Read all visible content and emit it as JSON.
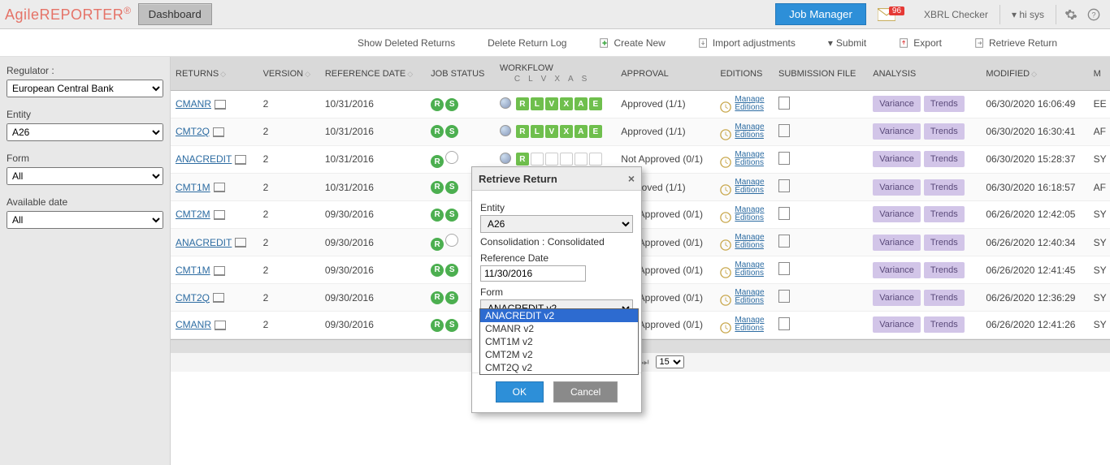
{
  "brand": {
    "a": "Agile",
    "b": "REPORTER",
    "r": "®"
  },
  "topbar": {
    "dashboard": "Dashboard",
    "job_manager": "Job Manager",
    "msg_count": "96",
    "xbrl": "XBRL Checker",
    "user": "hi sys"
  },
  "toolbar": {
    "show_deleted": "Show Deleted Returns",
    "delete_log": "Delete Return Log",
    "create_new": "Create New",
    "import_adj": "Import adjustments",
    "submit": "Submit",
    "export": "Export",
    "retrieve": "Retrieve Return"
  },
  "sidebar": {
    "regulator_lbl": "Regulator :",
    "regulator_val": "European Central Bank",
    "entity_lbl": "Entity",
    "entity_val": "A26",
    "form_lbl": "Form",
    "form_val": "All",
    "avail_lbl": "Available date",
    "avail_val": "All"
  },
  "headers": {
    "returns": "RETURNS",
    "version": "VERSION",
    "refdate": "REFERENCE DATE",
    "jobstatus": "JOB STATUS",
    "workflow": "WORKFLOW",
    "wf_letters": [
      "C",
      "L",
      "V",
      "X",
      "A",
      "S"
    ],
    "approval": "APPROVAL",
    "editions": "EDITIONS",
    "subfile": "SUBMISSION FILE",
    "analysis": "ANALYSIS",
    "modified": "MODIFIED",
    "m": "M"
  },
  "analysis_btn": {
    "variance": "Variance",
    "trends": "Trends"
  },
  "editions": {
    "manage": "Manage",
    "editions": "Editions"
  },
  "rows": [
    {
      "ret": "CMANR",
      "ver": "2",
      "ref": "10/31/2016",
      "js": [
        "R",
        "S"
      ],
      "wf": [
        "g",
        "g",
        "g",
        "g",
        "g",
        "g"
      ],
      "app": "Approved (1/1)",
      "mod": "06/30/2020 16:06:49",
      "m": "EE"
    },
    {
      "ret": "CMT2Q",
      "ver": "2",
      "ref": "10/31/2016",
      "js": [
        "R",
        "S"
      ],
      "wf": [
        "g",
        "g",
        "g",
        "g",
        "g",
        "g"
      ],
      "app": "Approved (1/1)",
      "mod": "06/30/2020 16:30:41",
      "m": "AF"
    },
    {
      "ret": "ANACREDIT",
      "ver": "2",
      "ref": "10/31/2016",
      "js": [
        "R",
        "O"
      ],
      "wf": [
        "g",
        "e",
        "e",
        "e",
        "e",
        "e"
      ],
      "app": "Not Approved (0/1)",
      "mod": "06/30/2020 15:28:37",
      "m": "SY"
    },
    {
      "ret": "CMT1M",
      "ver": "2",
      "ref": "10/31/2016",
      "js": [
        "R",
        "S"
      ],
      "wf": [
        "g",
        "g",
        "g",
        "g",
        "g",
        "g"
      ],
      "app": "Approved (1/1)",
      "mod": "06/30/2020 16:18:57",
      "m": "AF"
    },
    {
      "ret": "CMT2M",
      "ver": "2",
      "ref": "09/30/2016",
      "js": [
        "R",
        "S"
      ],
      "wf": [
        "g",
        "e",
        "e",
        "e",
        "e",
        "e"
      ],
      "app": "Not Approved (0/1)",
      "mod": "06/26/2020 12:42:05",
      "m": "SY"
    },
    {
      "ret": "ANACREDIT",
      "ver": "2",
      "ref": "09/30/2016",
      "js": [
        "R",
        "O"
      ],
      "wf": [
        "g",
        "e",
        "e",
        "e",
        "e",
        "e"
      ],
      "app": "Not Approved (0/1)",
      "mod": "06/26/2020 12:40:34",
      "m": "SY"
    },
    {
      "ret": "CMT1M",
      "ver": "2",
      "ref": "09/30/2016",
      "js": [
        "R",
        "S"
      ],
      "wf": [
        "g",
        "e",
        "e",
        "e",
        "e",
        "e"
      ],
      "app": "Not Approved (0/1)",
      "mod": "06/26/2020 12:41:45",
      "m": "SY"
    },
    {
      "ret": "CMT2Q",
      "ver": "2",
      "ref": "09/30/2016",
      "js": [
        "R",
        "S"
      ],
      "wf": [
        "g",
        "e",
        "e",
        "e",
        "e",
        "e"
      ],
      "app": "Not Approved (0/1)",
      "mod": "06/26/2020 12:36:29",
      "m": "SY"
    },
    {
      "ret": "CMANR",
      "ver": "2",
      "ref": "09/30/2016",
      "js": [
        "R",
        "S"
      ],
      "wf": [
        "g",
        "e",
        "e",
        "e",
        "e",
        "e"
      ],
      "app": "Not Approved (0/1)",
      "mod": "06/26/2020 12:41:26",
      "m": "SY"
    }
  ],
  "pager": {
    "size": "15"
  },
  "modal": {
    "title": "Retrieve Return",
    "entity_lbl": "Entity",
    "entity_val": "A26",
    "consol": "Consolidation : Consolidated",
    "ref_lbl": "Reference Date",
    "ref_val": "11/30/2016",
    "form_lbl": "Form",
    "form_val": "ANACREDIT v2",
    "options": [
      "ANACREDIT v2",
      "CMANR v2",
      "CMT1M v2",
      "CMT2M v2",
      "CMT2Q v2"
    ],
    "ok": "OK",
    "cancel": "Cancel"
  }
}
